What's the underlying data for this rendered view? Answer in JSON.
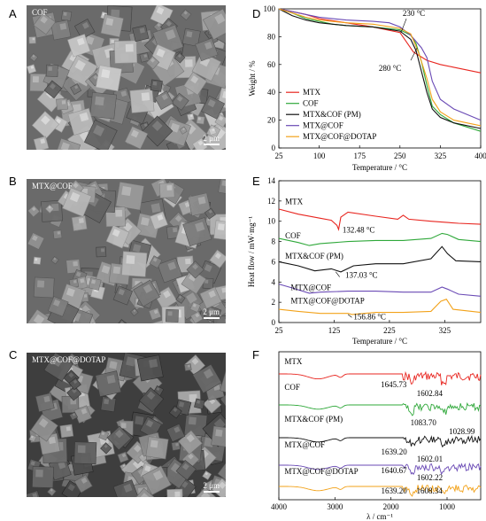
{
  "panels": {
    "A": {
      "letter": "A",
      "title": "COF",
      "scale": "2 μm"
    },
    "B": {
      "letter": "B",
      "title": "MTX@COF",
      "scale": "2 μm"
    },
    "C": {
      "letter": "C",
      "title": "MTX@COF@DOTAP",
      "scale": "2 μm"
    },
    "D": {
      "letter": "D"
    },
    "E": {
      "letter": "E"
    },
    "F": {
      "letter": "F"
    }
  },
  "colors": {
    "MTX": "#e8251f",
    "COF": "#2fa83a",
    "PM": "#111111",
    "MTX@COF": "#6a4ab5",
    "MTX@COF@DOTAP": "#f2a21a"
  },
  "chart_data": [
    {
      "id": "D",
      "type": "line",
      "xlabel": "Temperature / °C",
      "ylabel": "Weight / %",
      "xlim": [
        25,
        400
      ],
      "ylim": [
        0,
        100
      ],
      "xticks": [
        "25",
        "100",
        "175",
        "250",
        "325",
        "400"
      ],
      "yticks": [
        "0",
        "20",
        "40",
        "60",
        "80",
        "100"
      ],
      "annotations": [
        {
          "text": "230 °C",
          "x": 255,
          "y": 95
        },
        {
          "text": "280 °C",
          "x": 260,
          "y": 58
        }
      ],
      "legend_position": "bottom-left",
      "series": [
        {
          "name": "MTX",
          "key": "MTX",
          "x": [
            25,
            50,
            75,
            100,
            150,
            200,
            250,
            275,
            300,
            325,
            350,
            400
          ],
          "y": [
            100,
            98,
            96,
            93,
            90,
            87,
            83,
            69,
            63,
            60,
            58,
            54
          ]
        },
        {
          "name": "COF",
          "key": "COF",
          "x": [
            25,
            50,
            75,
            100,
            125,
            150,
            200,
            250,
            270,
            280,
            290,
            300,
            310,
            325,
            350,
            400
          ],
          "y": [
            100,
            97,
            93,
            91,
            89,
            88,
            87,
            85,
            81,
            75,
            62,
            45,
            30,
            24,
            18,
            12
          ]
        },
        {
          "name": "MTX&COF (PM)",
          "key": "PM",
          "x": [
            25,
            50,
            75,
            100,
            125,
            150,
            200,
            250,
            270,
            280,
            290,
            300,
            310,
            325,
            350,
            400
          ],
          "y": [
            100,
            95,
            92,
            90,
            89,
            88,
            87,
            84,
            78,
            70,
            55,
            40,
            28,
            22,
            18,
            14
          ]
        },
        {
          "name": "MTX@COF",
          "key": "MTX@COF",
          "x": [
            25,
            50,
            75,
            100,
            150,
            200,
            230,
            250,
            270,
            290,
            300,
            310,
            325,
            350,
            400
          ],
          "y": [
            100,
            98,
            96,
            94,
            92,
            91,
            90,
            87,
            81,
            72,
            65,
            48,
            35,
            28,
            20
          ]
        },
        {
          "name": "MTX@COF@DOTAP",
          "key": "MTX@COF@DOTAP",
          "x": [
            25,
            50,
            75,
            100,
            150,
            200,
            250,
            270,
            285,
            300,
            310,
            325,
            350,
            400
          ],
          "y": [
            100,
            97,
            94,
            92,
            90,
            89,
            86,
            82,
            68,
            50,
            35,
            26,
            20,
            16
          ]
        }
      ]
    },
    {
      "id": "E",
      "type": "line",
      "xlabel": "Temperature / °C",
      "ylabel": "Heat flow / mW·mg⁻¹",
      "xlim": [
        25,
        390
      ],
      "ylim": [
        0,
        14
      ],
      "xticks": [
        "25",
        "125",
        "225",
        "325"
      ],
      "yticks": [
        "0",
        "2",
        "4",
        "6",
        "8",
        "10",
        "12",
        "14"
      ],
      "labels": [
        {
          "text": "MTX",
          "x": 30,
          "y": 11.7
        },
        {
          "text": "COF",
          "x": 30,
          "y": 8.3
        },
        {
          "text": "MTX&COF (PM)",
          "x": 30,
          "y": 6.3
        },
        {
          "text": "MTX@COF",
          "x": 40,
          "y": 3.2
        },
        {
          "text": "MTX@COF@DOTAP",
          "x": 40,
          "y": 1.9
        }
      ],
      "annotations": [
        {
          "text": "132.48  °C",
          "x": 140,
          "y": 8.9
        },
        {
          "text": "137.03  °C",
          "x": 145,
          "y": 4.4
        },
        {
          "text": "156.86  °C",
          "x": 160,
          "y": 0.3
        }
      ],
      "series": [
        {
          "name": "MTX",
          "key": "MTX",
          "x": [
            25,
            60,
            100,
            120,
            130,
            133,
            137,
            150,
            200,
            240,
            250,
            260,
            300,
            350,
            390
          ],
          "y": [
            11.2,
            10.7,
            10.3,
            10.1,
            9.6,
            9.2,
            10.4,
            10.9,
            10.5,
            10.2,
            10.6,
            10.2,
            10.0,
            9.8,
            9.7
          ]
        },
        {
          "name": "COF",
          "key": "COF",
          "x": [
            25,
            60,
            80,
            100,
            150,
            200,
            250,
            300,
            320,
            330,
            350,
            390
          ],
          "y": [
            8.3,
            7.9,
            7.6,
            7.8,
            8.0,
            8.1,
            8.1,
            8.3,
            8.8,
            8.7,
            8.2,
            8.0
          ]
        },
        {
          "name": "MTX&COF (PM)",
          "key": "PM",
          "x": [
            25,
            60,
            90,
            120,
            137,
            160,
            200,
            250,
            300,
            320,
            330,
            345,
            390
          ],
          "y": [
            6.0,
            5.6,
            5.1,
            5.3,
            5.0,
            5.6,
            5.8,
            5.8,
            6.3,
            7.5,
            6.8,
            6.1,
            6.0
          ]
        },
        {
          "name": "MTX@COF",
          "key": "MTX@COF",
          "x": [
            25,
            50,
            80,
            100,
            150,
            200,
            250,
            300,
            320,
            330,
            350,
            390
          ],
          "y": [
            3.8,
            3.4,
            2.9,
            3.0,
            3.1,
            3.1,
            3.0,
            3.0,
            3.5,
            3.3,
            2.8,
            2.6
          ]
        },
        {
          "name": "MTX@COF@DOTAP",
          "key": "MTX@COF@DOTAP",
          "x": [
            25,
            60,
            100,
            150,
            157,
            200,
            250,
            300,
            318,
            328,
            340,
            390
          ],
          "y": [
            1.3,
            1.1,
            0.9,
            0.9,
            0.8,
            1.0,
            1.0,
            1.1,
            2.1,
            2.3,
            1.3,
            1.0
          ]
        }
      ]
    },
    {
      "id": "F",
      "type": "line",
      "xlabel": "λ / cm⁻¹",
      "xlim": [
        4000,
        400
      ],
      "xticks": [
        "4000",
        "3000",
        "2000",
        "1000"
      ],
      "labels": [
        {
          "text": "MTX",
          "x": 3900
        },
        {
          "text": "COF",
          "x": 3900
        },
        {
          "text": "MTX&COF (PM)",
          "x": 3900
        },
        {
          "text": "MTX@COF",
          "x": 3900
        },
        {
          "text": "MTX@COF@DOTAP",
          "x": 3900
        }
      ],
      "annotations": [
        {
          "text": "1645.73",
          "x": 1646
        },
        {
          "text": "1602.84",
          "x": 1603
        },
        {
          "text": "1083.70",
          "x": 1084
        },
        {
          "text": "1028.99",
          "x": 1029
        },
        {
          "text": "1639.20",
          "x": 1639
        },
        {
          "text": "1602.01",
          "x": 1602
        },
        {
          "text": "1640.67",
          "x": 1641
        },
        {
          "text": "1602.22",
          "x": 1602
        },
        {
          "text": "1639.20",
          "x": 1639
        },
        {
          "text": "1608.34",
          "x": 1608
        }
      ],
      "series": [
        {
          "name": "MTX",
          "key": "MTX"
        },
        {
          "name": "COF",
          "key": "COF"
        },
        {
          "name": "MTX&COF (PM)",
          "key": "PM"
        },
        {
          "name": "MTX@COF",
          "key": "MTX@COF"
        },
        {
          "name": "MTX@COF@DOTAP",
          "key": "MTX@COF@DOTAP"
        }
      ]
    }
  ]
}
